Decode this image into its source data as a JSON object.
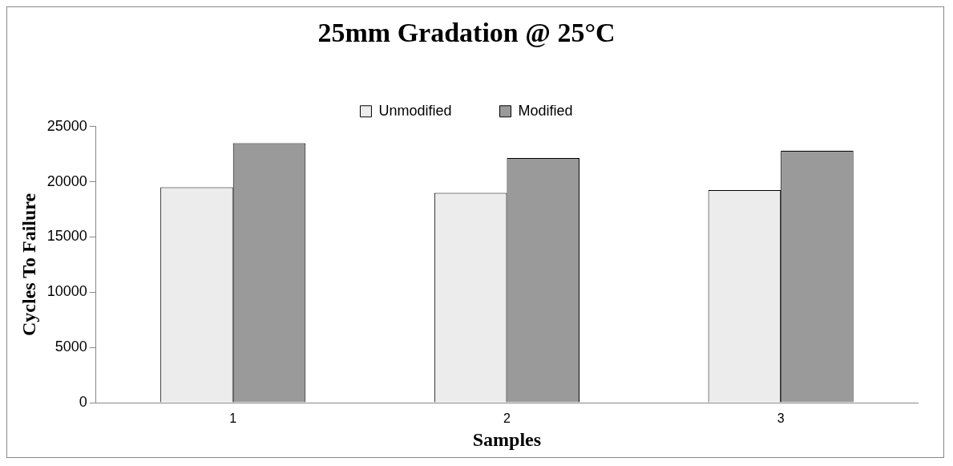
{
  "chart_data": {
    "type": "bar",
    "title": "25mm Gradation @ 25°C",
    "xlabel": "Samples",
    "ylabel": "Cycles To Failure",
    "categories": [
      "1",
      "2",
      "3"
    ],
    "series": [
      {
        "name": "Unmodified",
        "color": "#ececec",
        "values": [
          19500,
          19000,
          19250
        ]
      },
      {
        "name": "Modified",
        "color": "#9a9a9a",
        "values": [
          23500,
          22150,
          22800
        ]
      }
    ],
    "ylim": [
      0,
      25000
    ],
    "yticks": [
      0,
      5000,
      10000,
      15000,
      20000,
      25000
    ],
    "grid": false,
    "legend": "top"
  }
}
